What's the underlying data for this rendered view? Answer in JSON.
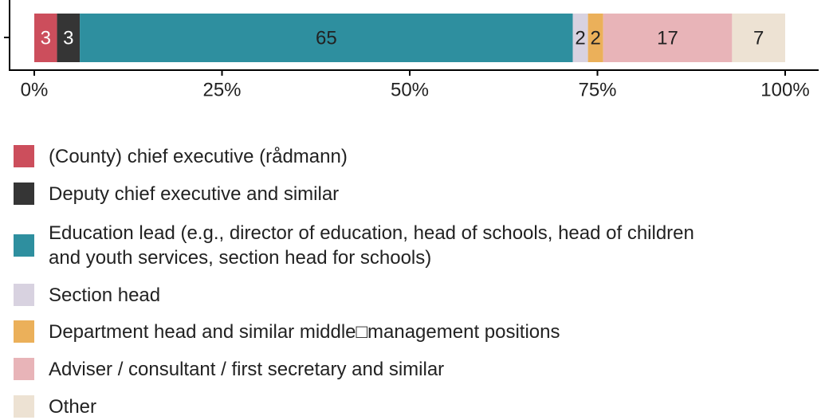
{
  "chart_data": {
    "type": "stacked_bar_100",
    "series": [
      {
        "name": "(County) chief executive (rådmann)",
        "color": "#cc4e5c",
        "label_color": "#ffffff",
        "values": [
          3
        ]
      },
      {
        "name": "Deputy chief executive and similar",
        "color": "#353535",
        "label_color": "#ffffff",
        "values": [
          3
        ]
      },
      {
        "name": "Education lead (e.g., director of education, head of schools, head of children\nand youth services, section head for schools)",
        "color": "#2e8f9f",
        "label_color": "#222222",
        "values": [
          65
        ]
      },
      {
        "name": "Section head",
        "color": "#d8d2e0",
        "label_color": "#222222",
        "values": [
          2
        ]
      },
      {
        "name": "Department head and similar middle□management positions",
        "color": "#ebb05a",
        "label_color": "#222222",
        "values": [
          2
        ]
      },
      {
        "name": "Adviser / consultant / first secretary and similar",
        "color": "#e8b4b8",
        "label_color": "#222222",
        "values": [
          17
        ]
      },
      {
        "name": "Other",
        "color": "#ede2d3",
        "label_color": "#222222",
        "values": [
          7
        ]
      }
    ],
    "xlim": [
      0,
      100
    ],
    "xticks": [
      {
        "value": 0,
        "label": "0%"
      },
      {
        "value": 25,
        "label": "25%"
      },
      {
        "value": 50,
        "label": "50%"
      },
      {
        "value": 75,
        "label": "75%"
      },
      {
        "value": 100,
        "label": "100%"
      }
    ]
  }
}
